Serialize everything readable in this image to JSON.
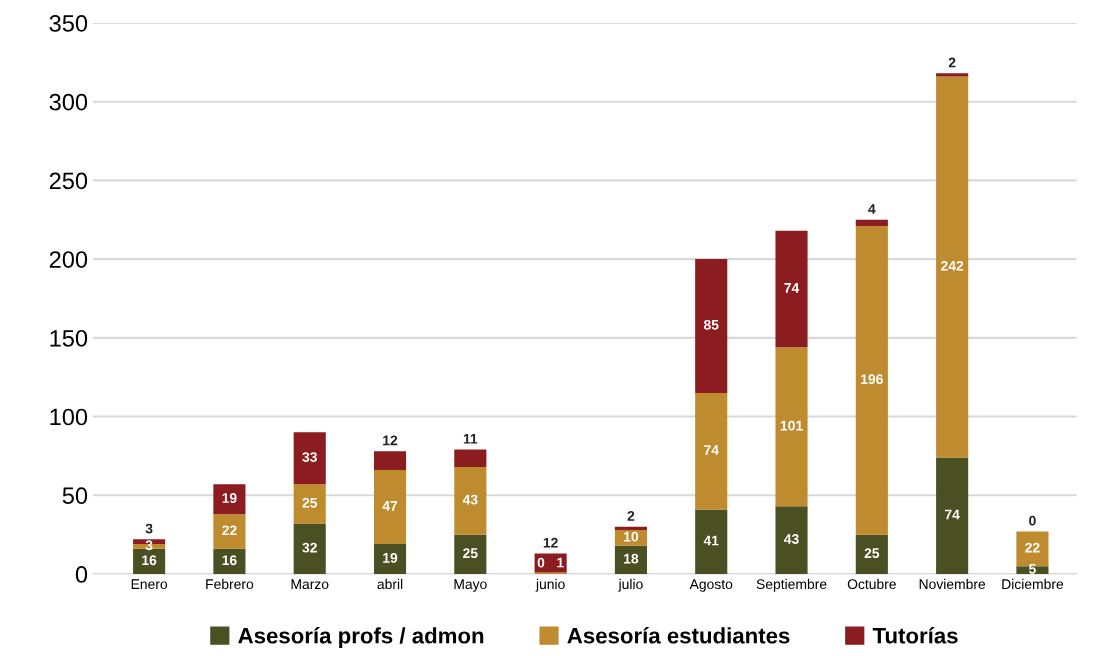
{
  "chart_data": {
    "type": "bar",
    "stacked": true,
    "categories": [
      "Enero",
      "Febrero",
      "Marzo",
      "abril",
      "Mayo",
      "junio",
      "julio",
      "Agosto",
      "Septiembre",
      "Octubre",
      "Noviembre",
      "Diciembre"
    ],
    "series": [
      {
        "name": "Asesoría profs / admon",
        "color": "#4b5023",
        "values": [
          16,
          16,
          32,
          19,
          25,
          0,
          18,
          41,
          43,
          25,
          74,
          5
        ]
      },
      {
        "name": "Asesoría estudiantes",
        "color": "#bf8b2f",
        "values": [
          3,
          22,
          25,
          47,
          43,
          1,
          10,
          74,
          101,
          196,
          242,
          22
        ]
      },
      {
        "name": "Tutorías",
        "color": "#8b1c1f",
        "values": [
          3,
          19,
          33,
          12,
          11,
          12,
          2,
          85,
          74,
          4,
          2,
          0
        ]
      }
    ],
    "ylim": [
      0,
      350
    ],
    "yticks": [
      0,
      50,
      100,
      150,
      200,
      250,
      300,
      350
    ],
    "grid": "y",
    "legend": "bottom",
    "data_labels": true
  }
}
